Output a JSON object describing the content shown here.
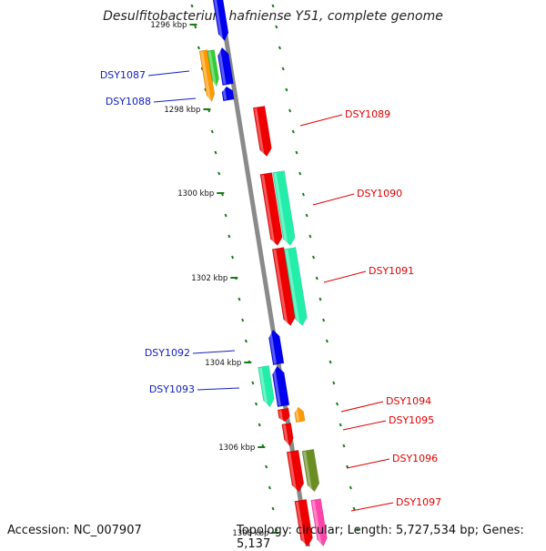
{
  "title": "Desulfitobacterium hafniense Y51, complete genome",
  "footer": {
    "accession": "Accession: NC_007907",
    "summary": "Topology: circular; Length: 5,727,534 bp; Genes: 5,137"
  },
  "scale_labels": [
    "1296 kbp",
    "1298 kbp",
    "1300 kbp",
    "1302 kbp",
    "1304 kbp",
    "1306 kbp",
    "1308 kbp"
  ],
  "colors": {
    "backbone": "#8a8a8a",
    "tick": "#1a7a1a",
    "label_left": "#1020c0",
    "label_right": "#e00000",
    "blue": "#0000ee",
    "red": "#ee0000",
    "aqua": "#22eeaa",
    "green": "#33cc33",
    "orange": "#ff9900",
    "olive": "#6b8e23",
    "pink": "#ff44aa"
  },
  "gene_labels": [
    {
      "name": "DSY1087",
      "side": "left"
    },
    {
      "name": "DSY1088",
      "side": "left"
    },
    {
      "name": "DSY1089",
      "side": "right"
    },
    {
      "name": "DSY1090",
      "side": "right"
    },
    {
      "name": "DSY1091",
      "side": "right"
    },
    {
      "name": "DSY1092",
      "side": "left"
    },
    {
      "name": "DSY1093",
      "side": "left"
    },
    {
      "name": "DSY1094",
      "side": "right"
    },
    {
      "name": "DSY1095",
      "side": "right"
    },
    {
      "name": "DSY1096",
      "side": "right"
    },
    {
      "name": "DSY1097",
      "side": "right"
    }
  ]
}
